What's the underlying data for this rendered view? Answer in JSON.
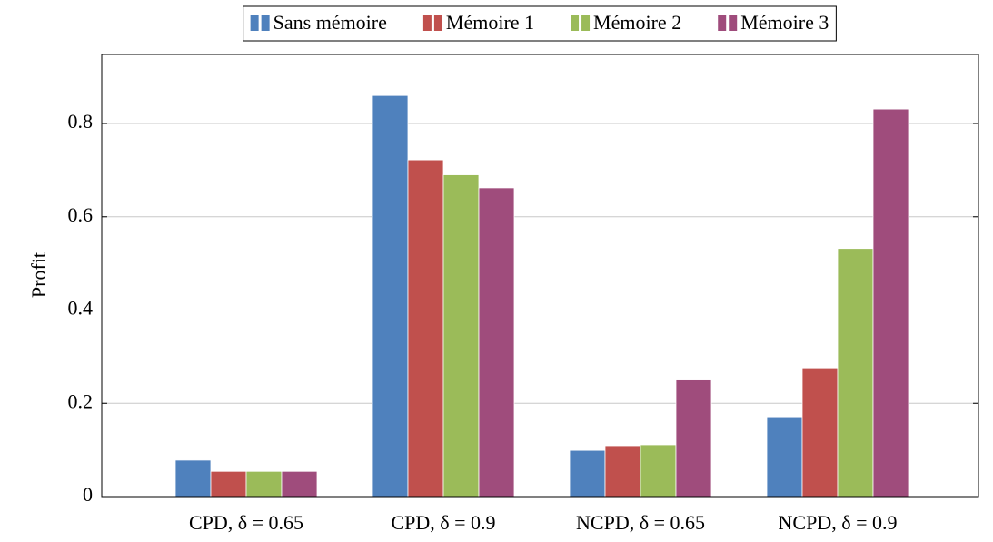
{
  "chart_data": {
    "type": "bar",
    "y_label": "Profit",
    "categories": [
      "CPD, δ = 0.65",
      "CPD, δ = 0.9",
      "NCPD, δ = 0.65",
      "NCPD, δ = 0.9"
    ],
    "series": [
      {
        "name": "Sans mémoire",
        "color": "#4f81bd",
        "values": [
          0.078,
          0.86,
          0.099,
          0.171
        ]
      },
      {
        "name": "Mémoire 1",
        "color": "#c0504d",
        "values": [
          0.054,
          0.722,
          0.109,
          0.276
        ]
      },
      {
        "name": "Mémoire 2",
        "color": "#9bbb59",
        "values": [
          0.054,
          0.69,
          0.111,
          0.532
        ]
      },
      {
        "name": "Mémoire 3",
        "color": "#9f4c7c",
        "values": [
          0.054,
          0.662,
          0.25,
          0.831
        ]
      }
    ],
    "ylim": [
      0,
      0.948
    ],
    "yticks": [
      0,
      0.2,
      0.4,
      0.6,
      0.8
    ],
    "grid": true,
    "legend": "top"
  }
}
